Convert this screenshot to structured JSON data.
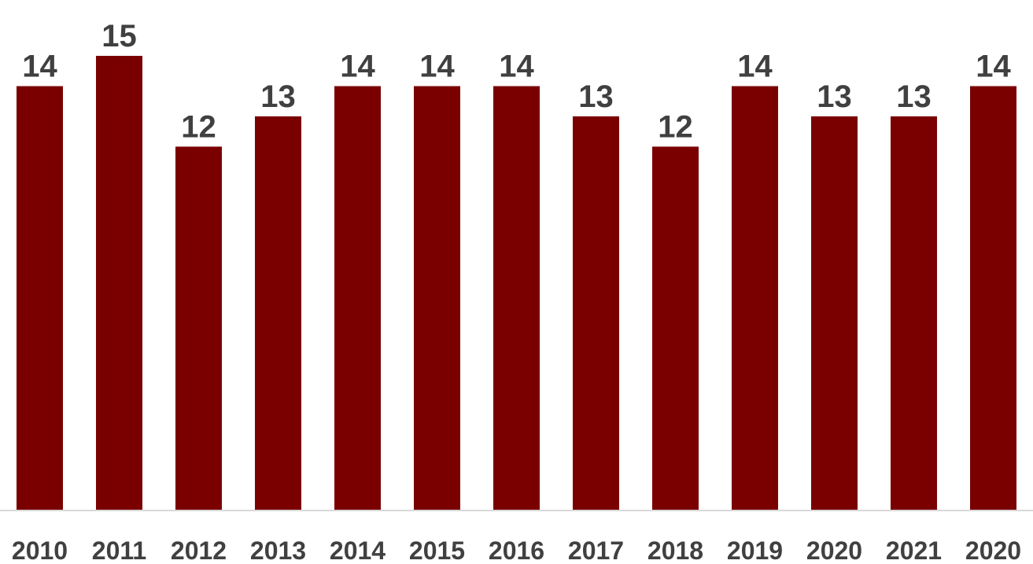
{
  "chart_data": {
    "type": "bar",
    "categories": [
      "2010",
      "2011",
      "2012",
      "2013",
      "2014",
      "2015",
      "2016",
      "2017",
      "2018",
      "2019",
      "2020",
      "2021",
      "2020"
    ],
    "values": [
      14,
      15,
      12,
      13,
      14,
      14,
      14,
      13,
      12,
      14,
      13,
      13,
      14
    ],
    "title": "",
    "xlabel": "",
    "ylabel": "",
    "ylim": [
      0,
      15
    ],
    "data_labels": true,
    "grid": false,
    "legend": "none",
    "colors": {
      "bar": "#7a0000",
      "label_text": "#404040",
      "axis_line": "#d9d9d9"
    }
  }
}
